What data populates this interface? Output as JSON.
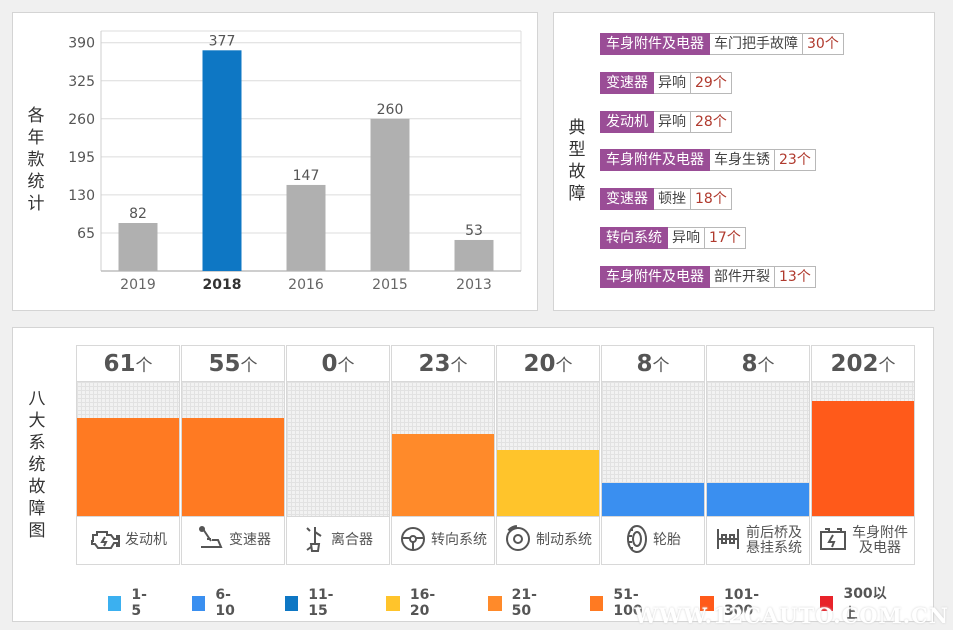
{
  "yearly_panel": {
    "side_label": "各年款统计"
  },
  "typical_panel": {
    "side_label": "典型故障",
    "faults": [
      {
        "part": "车身附件及电器",
        "type": "车门把手故障",
        "count": "30个"
      },
      {
        "part": "变速器",
        "type": "异响",
        "count": "29个"
      },
      {
        "part": "发动机",
        "type": "异响",
        "count": "28个"
      },
      {
        "part": "车身附件及电器",
        "type": "车身生锈",
        "count": "23个"
      },
      {
        "part": "变速器",
        "type": "顿挫",
        "count": "18个"
      },
      {
        "part": "转向系统",
        "type": "异响",
        "count": "17个"
      },
      {
        "part": "车身附件及电器",
        "type": "部件开裂",
        "count": "13个"
      }
    ]
  },
  "systems_panel": {
    "side_label": "八大系统故障图",
    "unit": "个",
    "systems": [
      {
        "name": "发动机",
        "count": 61,
        "color": "#ff7a22",
        "icon": "engine-icon"
      },
      {
        "name": "变速器",
        "count": 55,
        "color": "#ff7a22",
        "icon": "gear-shift-icon"
      },
      {
        "name": "离合器",
        "count": 0,
        "color": "#ff7a22",
        "icon": "clutch-pedal-icon"
      },
      {
        "name": "转向系统",
        "count": 23,
        "color": "#ff8a2a",
        "icon": "steering-wheel-icon"
      },
      {
        "name": "制动系统",
        "count": 20,
        "color": "#ffc42b",
        "icon": "brake-disc-icon"
      },
      {
        "name": "轮胎",
        "count": 8,
        "color": "#3a8ff0",
        "icon": "tire-icon"
      },
      {
        "name": "前后桥及\n悬挂系统",
        "count": 8,
        "color": "#3a8ff0",
        "icon": "suspension-icon"
      },
      {
        "name": "车身附件\n及电器",
        "count": 202,
        "color": "#ff5a1a",
        "icon": "car-battery-icon"
      }
    ],
    "legend": [
      {
        "label": "1-5",
        "color": "#3bb0f0"
      },
      {
        "label": "6-10",
        "color": "#3a8ff0"
      },
      {
        "label": "11-15",
        "color": "#0e77c4"
      },
      {
        "label": "16-20",
        "color": "#ffc42b"
      },
      {
        "label": "21-50",
        "color": "#ff8a2a"
      },
      {
        "label": "51-100",
        "color": "#ff7a22"
      },
      {
        "label": "101-300",
        "color": "#ff5a1a"
      },
      {
        "label": "300以上",
        "color": "#e8232a"
      }
    ]
  },
  "watermark": "WWW.12CAUTO.COM.CN",
  "chart_data": [
    {
      "type": "bar",
      "categories": [
        "2019",
        "2018",
        "2016",
        "2015",
        "2013"
      ],
      "values": [
        82,
        377,
        147,
        260,
        53
      ],
      "highlight_category": "2018",
      "colors": {
        "default": "#b0b0b0",
        "highlight": "#0e77c4"
      },
      "yticks": [
        65,
        130,
        195,
        260,
        325,
        390
      ],
      "ylim": [
        0,
        410
      ],
      "grid": true
    },
    {
      "type": "bar",
      "categories": [
        "发动机",
        "变速器",
        "离合器",
        "转向系统",
        "制动系统",
        "轮胎",
        "前后桥及悬挂系统",
        "车身附件及电器"
      ],
      "values": [
        61,
        55,
        0,
        23,
        20,
        8,
        8,
        202
      ],
      "bar_level": [
        0.73,
        0.73,
        0,
        0.61,
        0.49,
        0.25,
        0.25,
        0.86
      ],
      "unit": "个"
    }
  ]
}
